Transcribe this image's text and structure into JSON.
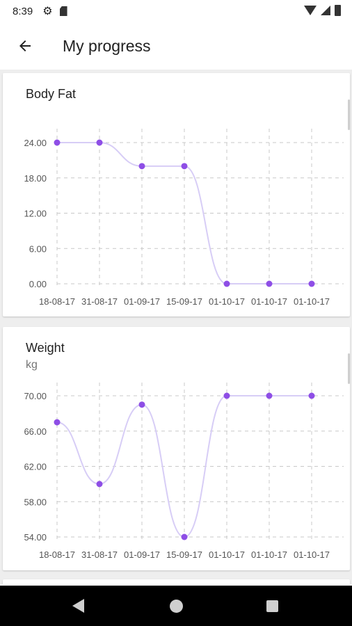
{
  "status_bar": {
    "time": "8:39",
    "icons": [
      "gear-icon",
      "sd-card-icon",
      "wifi-icon",
      "cell-signal-icon",
      "battery-icon"
    ]
  },
  "app_bar": {
    "title": "My progress",
    "back_icon": "arrow-left-icon"
  },
  "colors": {
    "line": "#d7cdf6",
    "point": "#8e4ee6",
    "grid": "#c8c8c8",
    "axis_text": "#555555"
  },
  "chart_data": [
    {
      "type": "line",
      "title": "Body Fat",
      "subtitle": "",
      "categories": [
        "18-08-17",
        "31-08-17",
        "01-09-17",
        "15-09-17",
        "01-10-17",
        "01-10-17",
        "01-10-17"
      ],
      "values": [
        24,
        24,
        20,
        20,
        0,
        0,
        0
      ],
      "y_ticks": [
        "0.00",
        "6.00",
        "12.00",
        "18.00",
        "24.00"
      ],
      "ylim": [
        0,
        24
      ],
      "grid": true
    },
    {
      "type": "line",
      "title": "Weight",
      "subtitle": "kg",
      "categories": [
        "18-08-17",
        "31-08-17",
        "01-09-17",
        "15-09-17",
        "01-10-17",
        "01-10-17",
        "01-10-17"
      ],
      "values": [
        67,
        60,
        69,
        54,
        70,
        70,
        70
      ],
      "y_ticks": [
        "54.00",
        "58.00",
        "62.00",
        "66.00",
        "70.00"
      ],
      "ylim": [
        54,
        70
      ],
      "grid": true
    }
  ],
  "nav_bar": {
    "buttons": [
      "back-triangle-icon",
      "home-circle-icon",
      "recents-square-icon"
    ]
  }
}
